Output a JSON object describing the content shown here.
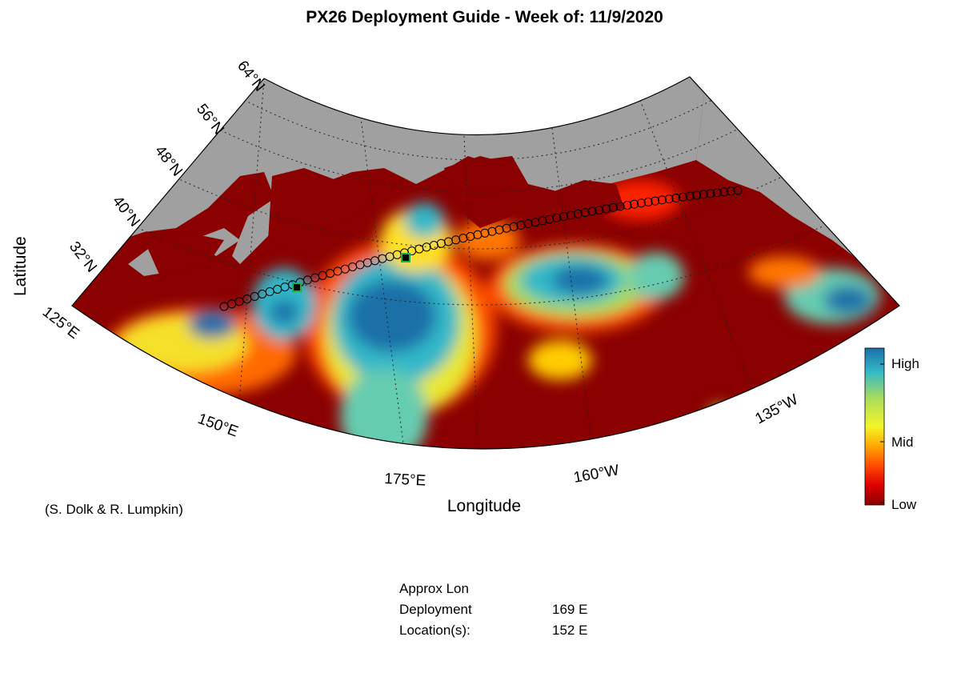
{
  "title": "PX26 Deployment Guide - Week of: 11/9/2020",
  "axes": {
    "xlabel": "Longitude",
    "ylabel": "Latitude",
    "lat_ticks": [
      "64°N",
      "56°N",
      "48°N",
      "40°N",
      "32°N"
    ],
    "lon_ticks": [
      "125°E",
      "150°E",
      "175°E",
      "160°W",
      "135°W"
    ]
  },
  "colorbar": {
    "labels": [
      "High",
      "Mid",
      "Low"
    ],
    "colors": [
      "#1a6fa8",
      "#33b8c8",
      "#a8dd5c",
      "#f5f529",
      "#ffaa00",
      "#ff4d00",
      "#e00000",
      "#8b0000"
    ]
  },
  "colors": {
    "land": "#a0a0a0",
    "ocean_low": "#8b0000",
    "high": "#0f6aa3"
  },
  "credit": "(S. Dolk & R. Lumpkin)",
  "deployment": {
    "header": "Approx Lon",
    "row1_label": "Deployment",
    "row2_label": "Location(s):",
    "locations": [
      "169 E",
      "152 E"
    ]
  }
}
